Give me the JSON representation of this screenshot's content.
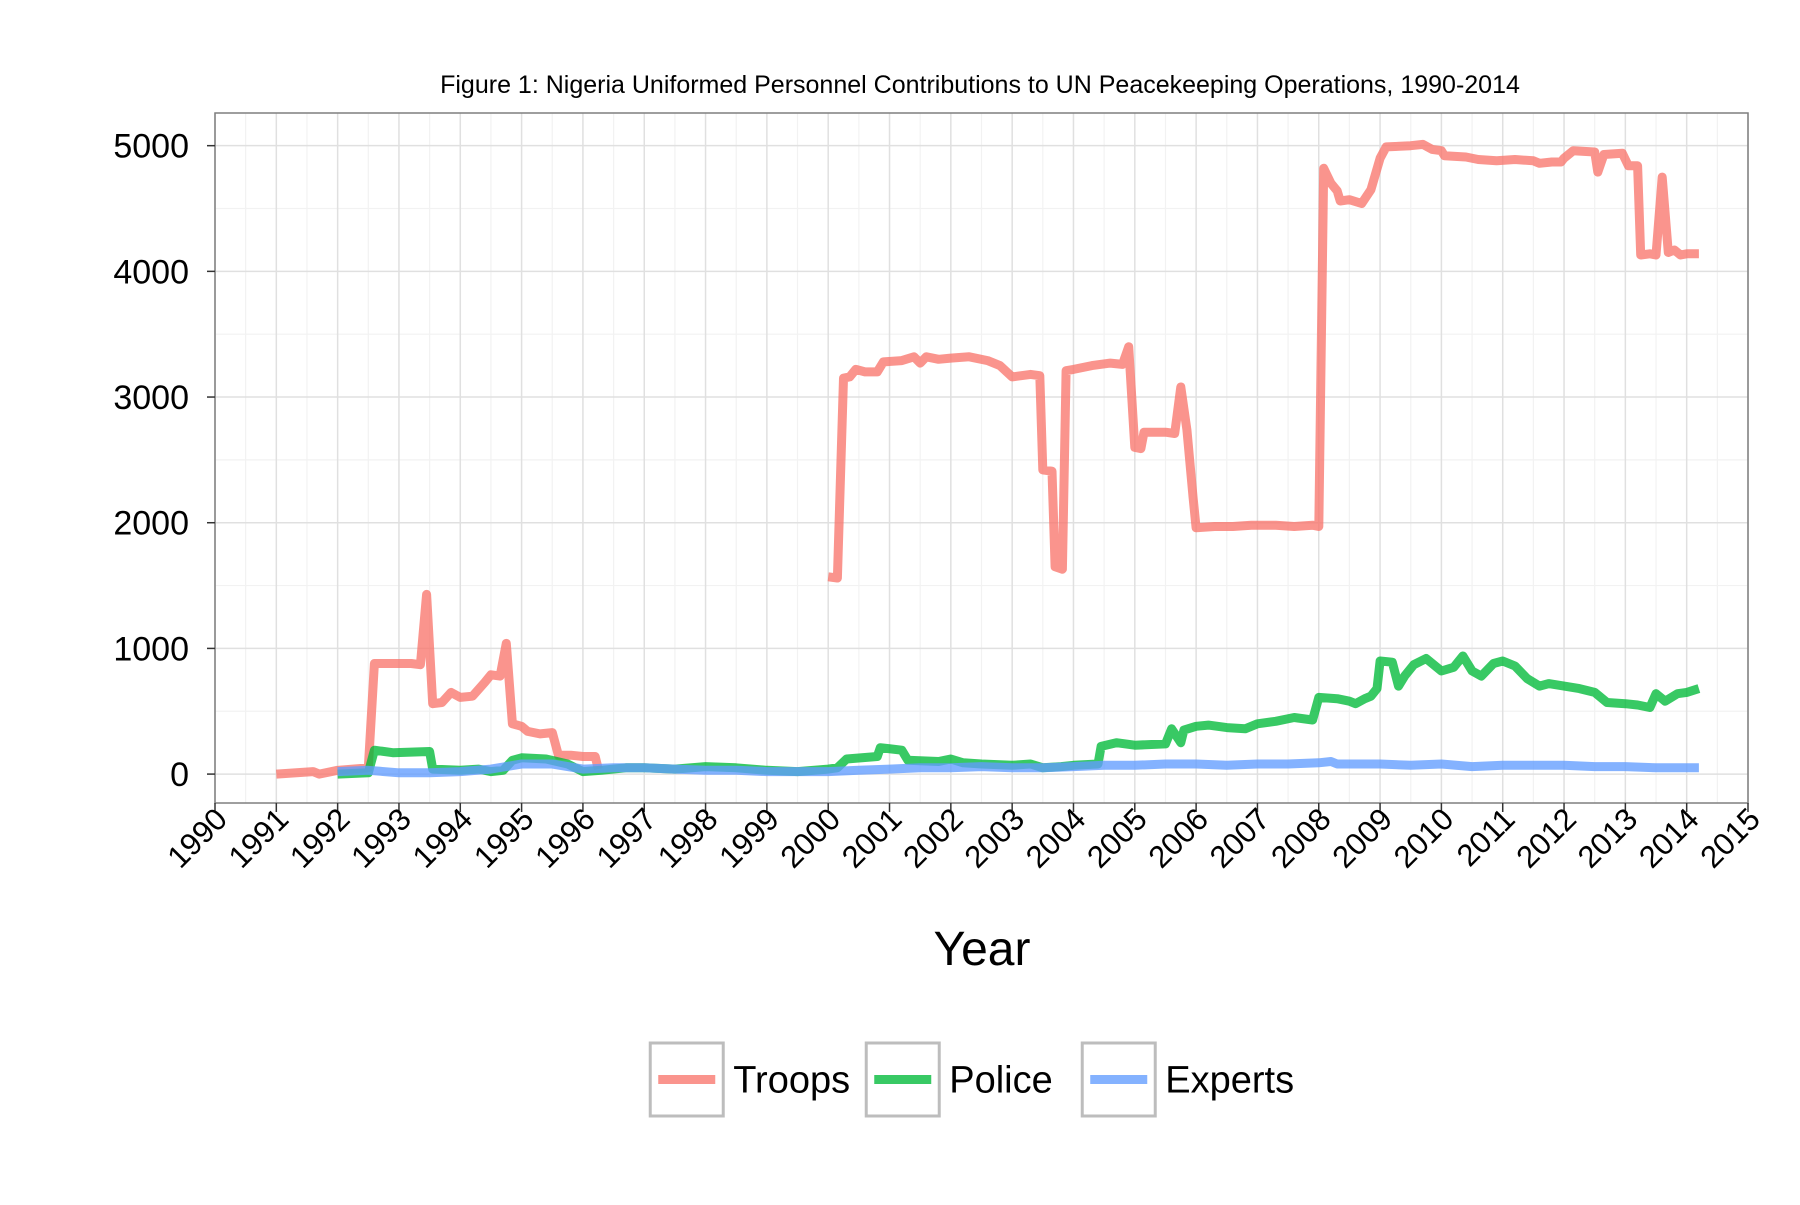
{
  "chart_data": {
    "type": "line",
    "title": "Figure 1: Nigeria Uniformed Personnel Contributions to UN Peacekeeping Operations, 1990-2014",
    "xlabel": "Year",
    "ylabel": "",
    "xlim": [
      1990,
      2015
    ],
    "ylim": [
      -230,
      5260
    ],
    "x_ticks": [
      "1990",
      "1991",
      "1992",
      "1993",
      "1994",
      "1995",
      "1996",
      "1997",
      "1998",
      "1999",
      "2000",
      "2001",
      "2002",
      "2003",
      "2004",
      "2005",
      "2006",
      "2007",
      "2008",
      "2009",
      "2010",
      "2011",
      "2012",
      "2013",
      "2014",
      "2015"
    ],
    "y_ticks": [
      "0",
      "1000",
      "2000",
      "3000",
      "4000",
      "5000"
    ],
    "grid": true,
    "legend_position": "bottom",
    "series": [
      {
        "name": "Troops",
        "color": "#F8766D",
        "segments": [
          [
            [
              1991.0,
              0
            ],
            [
              1991.6,
              20
            ],
            [
              1991.7,
              0
            ],
            [
              1992.0,
              30
            ],
            [
              1992.5,
              50
            ],
            [
              1992.6,
              880
            ],
            [
              1993.2,
              880
            ],
            [
              1993.35,
              870
            ],
            [
              1993.45,
              1430
            ],
            [
              1993.55,
              560
            ],
            [
              1993.7,
              570
            ],
            [
              1993.85,
              650
            ],
            [
              1994.0,
              610
            ],
            [
              1994.2,
              620
            ],
            [
              1994.4,
              730
            ],
            [
              1994.5,
              790
            ],
            [
              1994.65,
              780
            ],
            [
              1994.75,
              1040
            ],
            [
              1994.85,
              400
            ],
            [
              1995.0,
              380
            ],
            [
              1995.1,
              340
            ],
            [
              1995.3,
              320
            ],
            [
              1995.5,
              330
            ],
            [
              1995.6,
              150
            ],
            [
              1995.8,
              150
            ],
            [
              1996.0,
              140
            ],
            [
              1996.2,
              140
            ],
            [
              1996.25,
              40
            ]
          ],
          [
            [
              2000.0,
              1570
            ],
            [
              2000.15,
              1560
            ],
            [
              2000.25,
              3150
            ],
            [
              2000.35,
              3160
            ],
            [
              2000.45,
              3220
            ],
            [
              2000.6,
              3200
            ],
            [
              2000.8,
              3200
            ],
            [
              2000.9,
              3280
            ],
            [
              2001.2,
              3290
            ],
            [
              2001.4,
              3320
            ],
            [
              2001.5,
              3270
            ],
            [
              2001.6,
              3320
            ],
            [
              2001.8,
              3300
            ],
            [
              2002.0,
              3310
            ],
            [
              2002.3,
              3320
            ],
            [
              2002.6,
              3290
            ],
            [
              2002.8,
              3250
            ],
            [
              2003.0,
              3160
            ],
            [
              2003.3,
              3180
            ],
            [
              2003.45,
              3170
            ],
            [
              2003.5,
              2420
            ],
            [
              2003.65,
              2410
            ],
            [
              2003.7,
              1650
            ],
            [
              2003.82,
              1630
            ],
            [
              2003.88,
              3210
            ],
            [
              2004.0,
              3220
            ],
            [
              2004.3,
              3250
            ],
            [
              2004.6,
              3270
            ],
            [
              2004.8,
              3260
            ],
            [
              2004.9,
              3400
            ],
            [
              2005.0,
              2600
            ],
            [
              2005.1,
              2590
            ],
            [
              2005.15,
              2720
            ],
            [
              2005.5,
              2720
            ],
            [
              2005.65,
              2710
            ],
            [
              2005.75,
              3080
            ],
            [
              2005.85,
              2740
            ],
            [
              2005.95,
              2200
            ],
            [
              2006.0,
              1960
            ],
            [
              2006.3,
              1970
            ],
            [
              2006.6,
              1970
            ],
            [
              2006.9,
              1980
            ],
            [
              2007.3,
              1980
            ],
            [
              2007.6,
              1970
            ],
            [
              2007.9,
              1980
            ],
            [
              2008.0,
              1970
            ],
            [
              2008.08,
              4820
            ],
            [
              2008.2,
              4700
            ],
            [
              2008.3,
              4640
            ],
            [
              2008.35,
              4560
            ],
            [
              2008.5,
              4570
            ],
            [
              2008.7,
              4540
            ],
            [
              2008.85,
              4650
            ],
            [
              2009.0,
              4900
            ],
            [
              2009.1,
              4990
            ],
            [
              2009.5,
              5000
            ],
            [
              2009.7,
              5010
            ],
            [
              2009.85,
              4970
            ],
            [
              2010.0,
              4960
            ],
            [
              2010.05,
              4920
            ],
            [
              2010.4,
              4910
            ],
            [
              2010.6,
              4890
            ],
            [
              2010.9,
              4880
            ],
            [
              2011.2,
              4890
            ],
            [
              2011.5,
              4880
            ],
            [
              2011.6,
              4860
            ],
            [
              2011.8,
              4870
            ],
            [
              2011.95,
              4870
            ],
            [
              2012.0,
              4900
            ],
            [
              2012.15,
              4960
            ],
            [
              2012.5,
              4950
            ],
            [
              2012.55,
              4790
            ],
            [
              2012.65,
              4930
            ],
            [
              2012.95,
              4940
            ],
            [
              2013.05,
              4840
            ],
            [
              2013.2,
              4840
            ],
            [
              2013.25,
              4130
            ],
            [
              2013.4,
              4140
            ],
            [
              2013.5,
              4130
            ],
            [
              2013.6,
              4750
            ],
            [
              2013.7,
              4150
            ],
            [
              2013.8,
              4170
            ],
            [
              2013.9,
              4130
            ],
            [
              2014.0,
              4140
            ],
            [
              2014.2,
              4140
            ]
          ]
        ]
      },
      {
        "name": "Police",
        "color": "#00BA38",
        "segments": [
          [
            [
              1992.0,
              0
            ],
            [
              1992.5,
              10
            ],
            [
              1992.6,
              190
            ],
            [
              1992.9,
              170
            ],
            [
              1993.5,
              180
            ],
            [
              1993.55,
              40
            ],
            [
              1994.0,
              30
            ],
            [
              1994.3,
              40
            ],
            [
              1994.5,
              20
            ],
            [
              1994.7,
              30
            ],
            [
              1994.85,
              110
            ],
            [
              1995.0,
              130
            ],
            [
              1995.4,
              120
            ],
            [
              1995.75,
              80
            ],
            [
              1996.0,
              20
            ],
            [
              1996.3,
              30
            ],
            [
              1996.7,
              50
            ],
            [
              1997.0,
              50
            ],
            [
              1997.5,
              40
            ],
            [
              1998.0,
              60
            ],
            [
              1998.5,
              50
            ],
            [
              1999.0,
              30
            ],
            [
              1999.5,
              20
            ],
            [
              2000.0,
              40
            ],
            [
              2000.15,
              50
            ],
            [
              2000.3,
              120
            ],
            [
              2000.8,
              140
            ],
            [
              2000.85,
              210
            ],
            [
              2001.2,
              190
            ],
            [
              2001.3,
              110
            ],
            [
              2001.8,
              100
            ],
            [
              2002.0,
              120
            ],
            [
              2002.2,
              90
            ],
            [
              2002.5,
              80
            ],
            [
              2003.0,
              70
            ],
            [
              2003.3,
              80
            ],
            [
              2003.5,
              50
            ],
            [
              2003.8,
              60
            ],
            [
              2004.0,
              70
            ],
            [
              2004.4,
              80
            ],
            [
              2004.45,
              220
            ],
            [
              2004.7,
              250
            ],
            [
              2005.0,
              230
            ],
            [
              2005.5,
              240
            ],
            [
              2005.6,
              360
            ],
            [
              2005.75,
              250
            ],
            [
              2005.8,
              350
            ],
            [
              2006.0,
              380
            ],
            [
              2006.2,
              390
            ],
            [
              2006.5,
              370
            ],
            [
              2006.8,
              360
            ],
            [
              2007.0,
              400
            ],
            [
              2007.3,
              420
            ],
            [
              2007.6,
              450
            ],
            [
              2007.9,
              430
            ],
            [
              2008.0,
              610
            ],
            [
              2008.3,
              600
            ],
            [
              2008.5,
              580
            ],
            [
              2008.6,
              560
            ],
            [
              2008.75,
              600
            ],
            [
              2008.85,
              620
            ],
            [
              2008.95,
              680
            ],
            [
              2009.0,
              900
            ],
            [
              2009.2,
              890
            ],
            [
              2009.3,
              700
            ],
            [
              2009.4,
              780
            ],
            [
              2009.55,
              870
            ],
            [
              2009.75,
              920
            ],
            [
              2010.0,
              820
            ],
            [
              2010.2,
              850
            ],
            [
              2010.35,
              940
            ],
            [
              2010.5,
              820
            ],
            [
              2010.65,
              780
            ],
            [
              2010.85,
              880
            ],
            [
              2011.0,
              900
            ],
            [
              2011.2,
              860
            ],
            [
              2011.4,
              760
            ],
            [
              2011.6,
              700
            ],
            [
              2011.75,
              720
            ],
            [
              2012.0,
              700
            ],
            [
              2012.25,
              680
            ],
            [
              2012.5,
              650
            ],
            [
              2012.7,
              570
            ],
            [
              2013.0,
              560
            ],
            [
              2013.2,
              550
            ],
            [
              2013.4,
              530
            ],
            [
              2013.5,
              640
            ],
            [
              2013.65,
              580
            ],
            [
              2013.85,
              640
            ],
            [
              2014.0,
              650
            ],
            [
              2014.2,
              680
            ]
          ]
        ]
      },
      {
        "name": "Experts",
        "color": "#619CFF",
        "segments": [
          [
            [
              1992.0,
              20
            ],
            [
              1992.5,
              30
            ],
            [
              1993.0,
              10
            ],
            [
              1993.5,
              10
            ],
            [
              1994.0,
              20
            ],
            [
              1994.5,
              40
            ],
            [
              1995.0,
              80
            ],
            [
              1995.5,
              80
            ],
            [
              1996.0,
              40
            ],
            [
              1996.5,
              50
            ],
            [
              1997.0,
              50
            ],
            [
              1997.5,
              40
            ],
            [
              1998.0,
              30
            ],
            [
              1998.5,
              30
            ],
            [
              1999.0,
              20
            ],
            [
              1999.5,
              20
            ],
            [
              2000.0,
              20
            ],
            [
              2000.5,
              30
            ],
            [
              2001.0,
              40
            ],
            [
              2001.5,
              50
            ],
            [
              2002.0,
              50
            ],
            [
              2002.5,
              60
            ],
            [
              2003.0,
              50
            ],
            [
              2003.5,
              50
            ],
            [
              2004.0,
              60
            ],
            [
              2004.5,
              70
            ],
            [
              2005.0,
              70
            ],
            [
              2005.5,
              80
            ],
            [
              2006.0,
              80
            ],
            [
              2006.5,
              70
            ],
            [
              2007.0,
              80
            ],
            [
              2007.5,
              80
            ],
            [
              2008.0,
              90
            ],
            [
              2008.2,
              100
            ],
            [
              2008.3,
              80
            ],
            [
              2008.6,
              80
            ],
            [
              2009.0,
              80
            ],
            [
              2009.5,
              70
            ],
            [
              2010.0,
              80
            ],
            [
              2010.5,
              60
            ],
            [
              2011.0,
              70
            ],
            [
              2011.5,
              70
            ],
            [
              2012.0,
              70
            ],
            [
              2012.5,
              60
            ],
            [
              2013.0,
              60
            ],
            [
              2013.5,
              50
            ],
            [
              2014.0,
              50
            ],
            [
              2014.2,
              50
            ]
          ]
        ]
      }
    ]
  }
}
